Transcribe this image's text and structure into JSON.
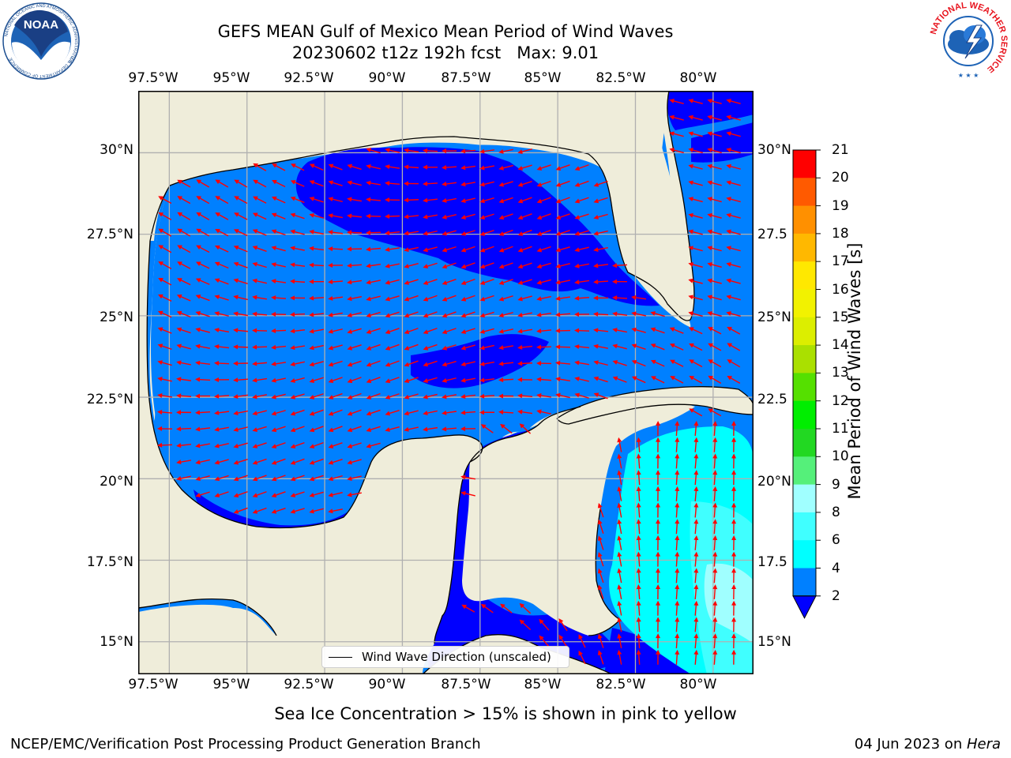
{
  "header": {
    "title_line1": "GEFS MEAN Gulf of Mexico Mean Period of Wind Waves",
    "title_line2": "20230602 t12z 192h fcst   Max: 9.01"
  },
  "logos": {
    "left": {
      "name": "NOAA",
      "ring_text": "NATIONAL OCEANIC AND ATMOSPHERIC ADMINISTRATION",
      "bottom_text": "U.S. DEPARTMENT OF COMMERCE"
    },
    "right": {
      "name": "National Weather Service",
      "ring_text": "NATIONAL WEATHER SERVICE"
    }
  },
  "map": {
    "extent": {
      "lon_min": -98.5,
      "lon_max": -78.7,
      "lat_min": 14.0,
      "lat_max": 31.9
    },
    "lon_ticks": [
      "97.5°W",
      "95°W",
      "92.5°W",
      "90°W",
      "87.5°W",
      "85°W",
      "82.5°W",
      "80°W"
    ],
    "lon_values": [
      -97.5,
      -95,
      -92.5,
      -90,
      -87.5,
      -85,
      -82.5,
      -80
    ],
    "lat_ticks_left": [
      "30°N",
      "27.5°N",
      "25°N",
      "22.5°N",
      "20°N",
      "17.5°N",
      "15°N"
    ],
    "lat_ticks_right": [
      "30°N",
      "27.5",
      "25°N",
      "22.5",
      "20°N",
      "17.5",
      "15°N"
    ],
    "lat_values": [
      30,
      27.5,
      25,
      22.5,
      20,
      17.5,
      15
    ],
    "colors": {
      "land": "#efedda",
      "coast": "#000000",
      "grid": "#b0b0b0",
      "arrow": "#ff0000",
      "period_2_4": "#0080ff",
      "period_below_2": "#0000ff",
      "period_4_6": "#00ffff",
      "period_6_8": "#40ffff",
      "period_8_9": "#a0ffff"
    },
    "legend_label": "Wind Wave Direction (unscaled)"
  },
  "colorbar": {
    "label": "Mean Period of Wind Waves [s]",
    "levels": [
      "2",
      "4",
      "6",
      "8",
      "9",
      "10",
      "11",
      "12",
      "13",
      "14",
      "15",
      "16",
      "17",
      "18",
      "19",
      "20",
      "21"
    ],
    "colors": [
      "#0080ff",
      "#00ffff",
      "#40ffff",
      "#a0ffff",
      "#55f07a",
      "#22d822",
      "#00ee00",
      "#55e000",
      "#aae000",
      "#dcee00",
      "#f2f200",
      "#ffe800",
      "#ffb800",
      "#ff9000",
      "#ff5a00",
      "#ff2600"
    ],
    "under_color": "#0000ff",
    "top_color": "#ff0000"
  },
  "footer": {
    "ice_note": "Sea Ice Concentration > 15% is shown in pink to yellow",
    "credit": "NCEP/EMC/Verification Post Processing Product Generation Branch",
    "date": "04 Jun 2023 on ",
    "host": "Hera"
  }
}
